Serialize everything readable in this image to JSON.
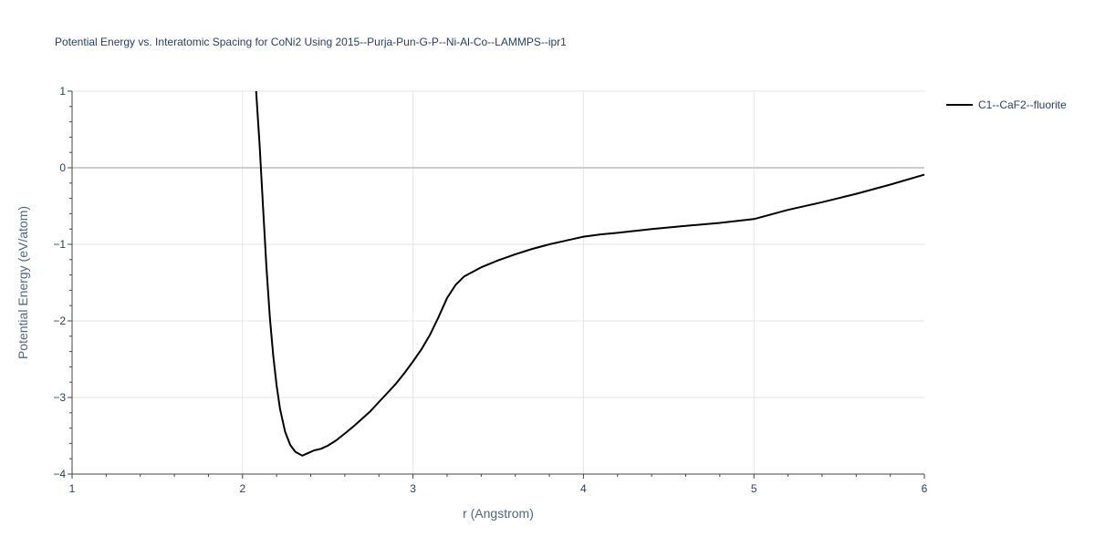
{
  "chart_data": {
    "type": "line",
    "title": "Potential Energy vs. Interatomic Spacing for CoNi2 Using 2015--Purja-Pun-G-P--Ni-Al-Co--LAMMPS--ipr1",
    "xlabel": "r (Angstrom)",
    "ylabel": "Potential Energy (eV/atom)",
    "xlim": [
      1,
      6
    ],
    "ylim": [
      -4,
      1
    ],
    "x_ticks": [
      "1",
      "2",
      "3",
      "4",
      "5",
      "6"
    ],
    "y_ticks": [
      "1",
      "0",
      "−1",
      "−2",
      "−3",
      "−4"
    ],
    "grid": true,
    "legend_position": "top-right",
    "series": [
      {
        "name": "C1--CaF2--fluorite",
        "color": "#000000",
        "x": [
          2.08,
          2.1,
          2.12,
          2.14,
          2.16,
          2.18,
          2.2,
          2.22,
          2.25,
          2.28,
          2.31,
          2.35,
          2.38,
          2.42,
          2.46,
          2.5,
          2.55,
          2.6,
          2.65,
          2.7,
          2.75,
          2.8,
          2.85,
          2.9,
          2.95,
          3.0,
          3.05,
          3.1,
          3.15,
          3.2,
          3.25,
          3.3,
          3.4,
          3.5,
          3.6,
          3.7,
          3.8,
          3.9,
          4.0,
          4.1,
          4.2,
          4.4,
          4.6,
          4.8,
          5.0,
          5.2,
          5.4,
          5.6,
          5.8,
          6.0
        ],
        "y": [
          1.0,
          0.3,
          -0.5,
          -1.3,
          -1.95,
          -2.45,
          -2.85,
          -3.15,
          -3.45,
          -3.62,
          -3.71,
          -3.76,
          -3.73,
          -3.69,
          -3.67,
          -3.63,
          -3.56,
          -3.47,
          -3.38,
          -3.28,
          -3.18,
          -3.06,
          -2.94,
          -2.82,
          -2.68,
          -2.53,
          -2.37,
          -2.18,
          -1.95,
          -1.7,
          -1.53,
          -1.42,
          -1.3,
          -1.21,
          -1.13,
          -1.06,
          -1.0,
          -0.95,
          -0.9,
          -0.87,
          -0.85,
          -0.8,
          -0.76,
          -0.72,
          -0.67,
          -0.55,
          -0.45,
          -0.34,
          -0.22,
          -0.09
        ]
      }
    ]
  }
}
